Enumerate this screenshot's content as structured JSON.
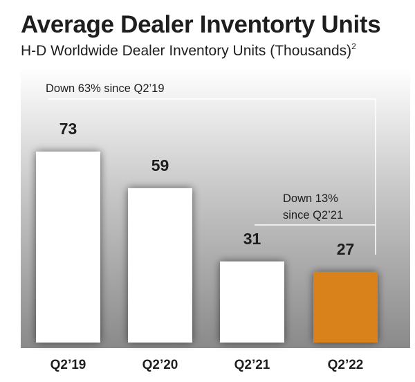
{
  "chart_data": {
    "type": "bar",
    "title": "Average Dealer Inventorty Units",
    "subtitle": "H-D Worldwide Dealer Inventory Units (Thousands)",
    "subtitle_footnote": "2",
    "categories": [
      "Q2’19",
      "Q2’20",
      "Q2’21",
      "Q2’22"
    ],
    "values": [
      73,
      59,
      31,
      27
    ],
    "ylim": [
      0,
      80
    ],
    "xlabel": "",
    "ylabel": "",
    "grid": false,
    "annotations": [
      {
        "text": "Down 63% since Q2’19",
        "from": "Q2’19",
        "to": "Q2’22"
      },
      {
        "text_lines": [
          "Down 13%",
          "since Q2’21"
        ],
        "from": "Q2’21",
        "to": "Q2’22"
      }
    ]
  },
  "colors": {
    "bar_default": "#ffffff",
    "bar_highlight": "#d9821f",
    "text": "#1e1e1e",
    "annotation_line": "#ffffff"
  },
  "highlight_index": 3
}
